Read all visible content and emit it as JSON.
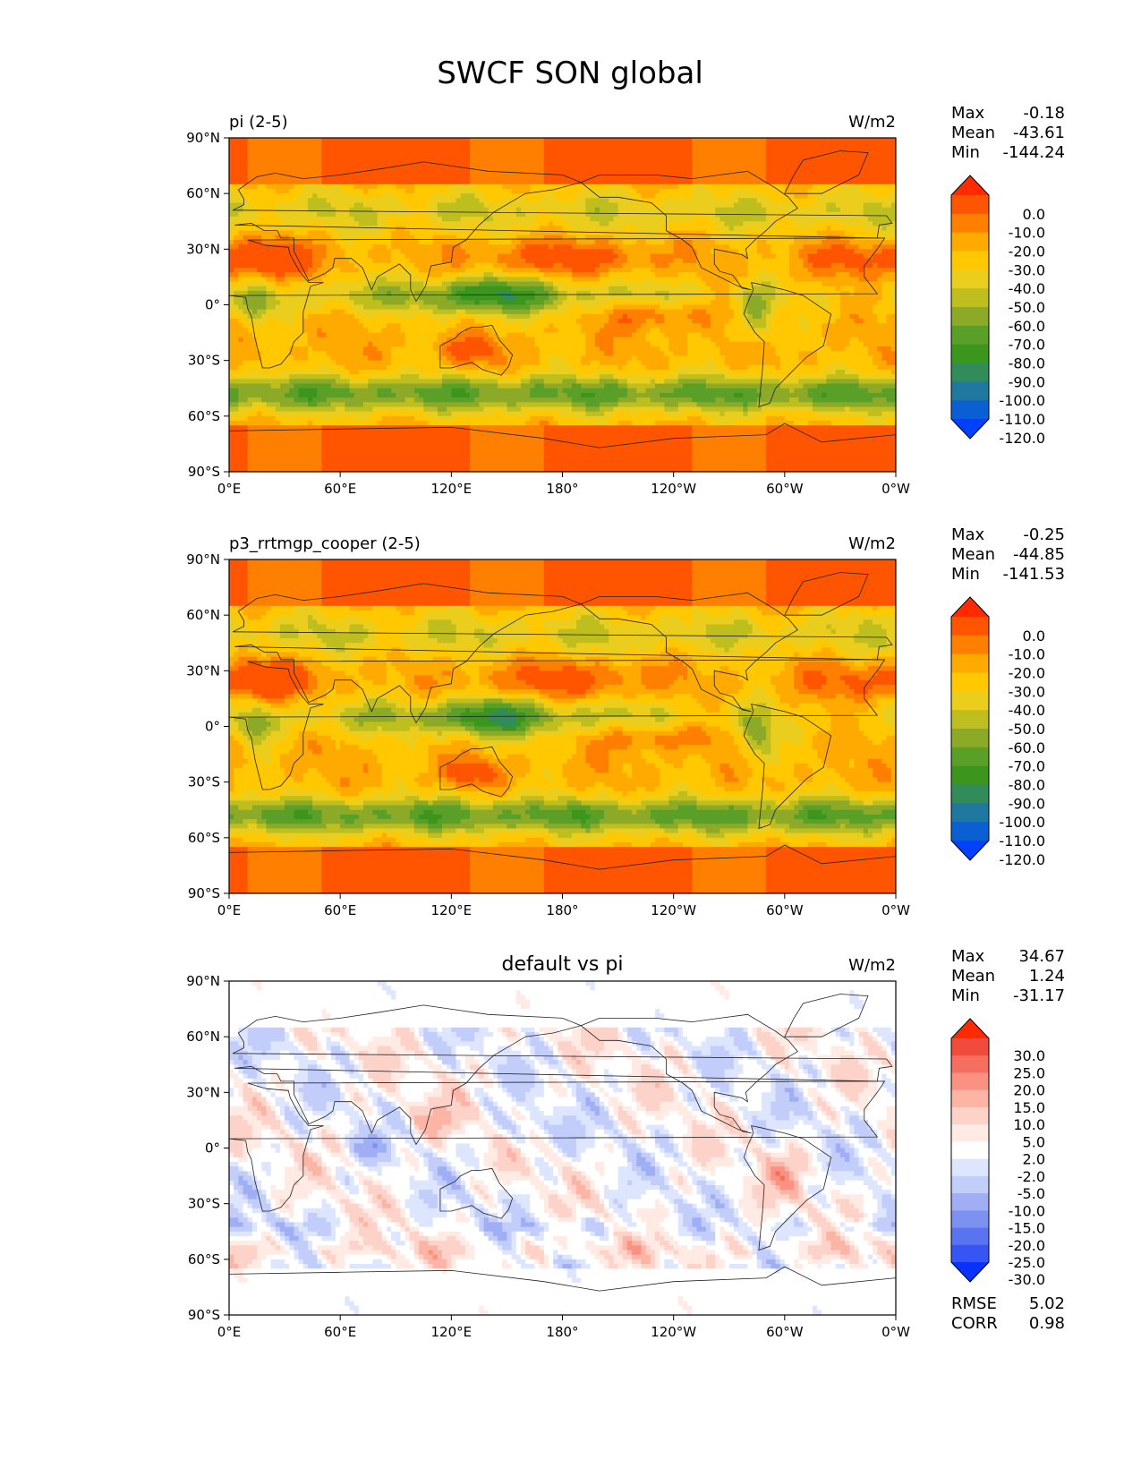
{
  "figure": {
    "title": "SWCF SON global"
  },
  "axes": {
    "lon_ticks": [
      "0°E",
      "60°E",
      "120°E",
      "180°",
      "120°W",
      "60°W",
      "0°W"
    ],
    "lat_ticks": [
      "90°N",
      "60°N",
      "30°N",
      "0°",
      "30°S",
      "60°S",
      "90°S"
    ]
  },
  "panels": [
    {
      "left_title": "pi (2-5)",
      "center_title": "",
      "units": "W/m2",
      "stats": [
        {
          "label": "Max",
          "value": "-0.18"
        },
        {
          "label": "Mean",
          "value": "-43.61"
        },
        {
          "label": "Min",
          "value": "-144.24"
        }
      ],
      "colorbar_labels": [
        "0.0",
        "-10.0",
        "-20.0",
        "-30.0",
        "-40.0",
        "-50.0",
        "-60.0",
        "-70.0",
        "-80.0",
        "-90.0",
        "-100.0",
        "-110.0",
        "-120.0"
      ],
      "colorbar_colors": [
        "#ff2a00",
        "#ff5500",
        "#ff7f00",
        "#ffaa00",
        "#ffc800",
        "#ebcd1e",
        "#bebe1e",
        "#8caa28",
        "#5aa028",
        "#3c961e",
        "#328c5a",
        "#1e78a0",
        "#0a5fd2",
        "#0040ff"
      ],
      "footer_stats": []
    },
    {
      "left_title": "p3_rrtmgp_cooper (2-5)",
      "center_title": "",
      "units": "W/m2",
      "stats": [
        {
          "label": "Max",
          "value": "-0.25"
        },
        {
          "label": "Mean",
          "value": "-44.85"
        },
        {
          "label": "Min",
          "value": "-141.53"
        }
      ],
      "colorbar_labels": [
        "0.0",
        "-10.0",
        "-20.0",
        "-30.0",
        "-40.0",
        "-50.0",
        "-60.0",
        "-70.0",
        "-80.0",
        "-90.0",
        "-100.0",
        "-110.0",
        "-120.0"
      ],
      "colorbar_colors": [
        "#ff2a00",
        "#ff5500",
        "#ff7f00",
        "#ffaa00",
        "#ffc800",
        "#ebcd1e",
        "#bebe1e",
        "#8caa28",
        "#5aa028",
        "#3c961e",
        "#328c5a",
        "#1e78a0",
        "#0a5fd2",
        "#0040ff"
      ],
      "footer_stats": []
    },
    {
      "left_title": "",
      "center_title": "default vs pi",
      "units": "W/m2",
      "stats": [
        {
          "label": "Max",
          "value": "34.67"
        },
        {
          "label": "Mean",
          "value": "1.24"
        },
        {
          "label": "Min",
          "value": "-31.17"
        }
      ],
      "colorbar_labels": [
        "30.0",
        "25.0",
        "20.0",
        "15.0",
        "10.0",
        "5.0",
        "2.0",
        "-2.0",
        "-5.0",
        "-10.0",
        "-15.0",
        "-20.0",
        "-25.0",
        "-30.0"
      ],
      "colorbar_colors": [
        "#ff2a00",
        "#f04b3c",
        "#f56e5f",
        "#fa9182",
        "#fcb4a5",
        "#fdd2c8",
        "#ffeae4",
        "#ffffff",
        "#dde5ff",
        "#c3cdfa",
        "#a0aff5",
        "#7d91f0",
        "#5a73f0",
        "#3755f5",
        "#0a32ff"
      ],
      "footer_stats": [
        {
          "label": "RMSE",
          "value": "5.02"
        },
        {
          "label": "CORR",
          "value": "0.98"
        }
      ]
    }
  ],
  "chart_data": [
    {
      "type": "heatmap",
      "title": "pi (2-5)",
      "units": "W/m2",
      "x_range": [
        0,
        360
      ],
      "y_range": [
        -90,
        90
      ],
      "max": -0.18,
      "mean": -43.61,
      "min": -144.24
    },
    {
      "type": "heatmap",
      "title": "p3_rrtmgp_cooper (2-5)",
      "units": "W/m2",
      "x_range": [
        0,
        360
      ],
      "y_range": [
        -90,
        90
      ],
      "max": -0.25,
      "mean": -44.85,
      "min": -141.53
    },
    {
      "type": "heatmap",
      "title": "default vs pi",
      "units": "W/m2",
      "x_range": [
        0,
        360
      ],
      "y_range": [
        -90,
        90
      ],
      "max": 34.67,
      "mean": 1.24,
      "min": -31.17,
      "rmse": 5.02,
      "corr": 0.98
    }
  ]
}
